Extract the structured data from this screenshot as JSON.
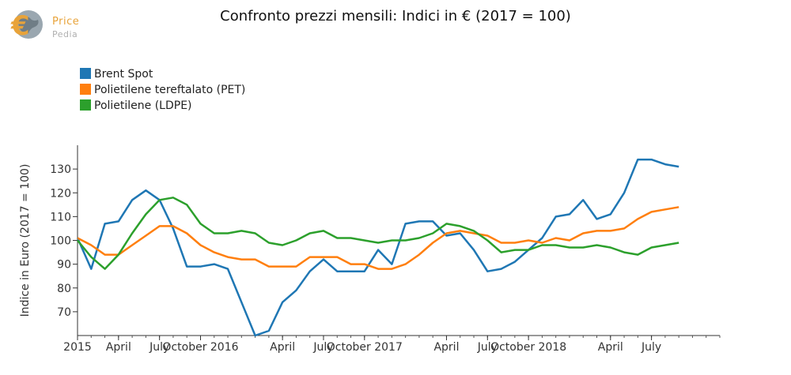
{
  "logo": {
    "line1": "Price",
    "line2": "Pedia"
  },
  "chart_data": {
    "type": "line",
    "title": "Confronto prezzi mensili: Indici in € (2017 = 100)",
    "ylabel": "Indice in Euro (2017 = 100)",
    "xlabel": "",
    "ylim": [
      60,
      140
    ],
    "yticks": [
      70,
      80,
      90,
      100,
      110,
      120,
      130
    ],
    "x_month_range": [
      "2015-01",
      "2018-12"
    ],
    "xtick_labels": [
      {
        "month": "2015-01",
        "label": "2015"
      },
      {
        "month": "2015-04",
        "label": "April"
      },
      {
        "month": "2015-07",
        "label": "July"
      },
      {
        "month": "2015-10",
        "label": "October 2016"
      },
      {
        "month": "2016-04",
        "label": "April"
      },
      {
        "month": "2016-07",
        "label": "July"
      },
      {
        "month": "2016-10",
        "label": "October 2017"
      },
      {
        "month": "2017-04",
        "label": "April"
      },
      {
        "month": "2017-07",
        "label": "July"
      },
      {
        "month": "2017-10",
        "label": "October 2018"
      },
      {
        "month": "2018-04",
        "label": "April"
      },
      {
        "month": "2018-07",
        "label": "July"
      }
    ],
    "legend_position": "top-left",
    "grid": false,
    "series": [
      {
        "name": "Brent Spot",
        "color": "#1f77b4",
        "x": [
          "2015-01",
          "2015-02",
          "2015-03",
          "2015-04",
          "2015-05",
          "2015-06",
          "2015-07",
          "2015-08",
          "2015-09",
          "2015-10",
          "2015-11",
          "2015-12",
          "2016-01",
          "2016-02",
          "2016-03",
          "2016-04",
          "2016-05",
          "2016-06",
          "2016-07",
          "2016-08",
          "2016-09",
          "2016-10",
          "2016-11",
          "2016-12",
          "2017-01",
          "2017-02",
          "2017-03",
          "2017-04",
          "2017-05",
          "2017-06",
          "2017-07",
          "2017-08",
          "2017-09",
          "2017-10",
          "2017-11",
          "2017-12",
          "2018-01",
          "2018-02",
          "2018-03",
          "2018-04",
          "2018-05",
          "2018-06",
          "2018-07",
          "2018-08",
          "2018-09"
        ],
        "values": [
          101,
          88,
          107,
          108,
          117,
          121,
          117,
          105,
          89,
          89,
          90,
          88,
          74,
          60,
          62,
          74,
          79,
          87,
          92,
          87,
          87,
          87,
          96,
          90,
          107,
          108,
          108,
          102,
          103,
          96,
          87,
          88,
          91,
          96,
          101,
          110,
          111,
          117,
          109,
          111,
          120,
          134,
          134,
          132,
          131
        ]
      },
      {
        "name": "Polietilene tereftalato (PET)",
        "color": "#ff7f0e",
        "x": [
          "2015-01",
          "2015-02",
          "2015-03",
          "2015-04",
          "2015-05",
          "2015-06",
          "2015-07",
          "2015-08",
          "2015-09",
          "2015-10",
          "2015-11",
          "2015-12",
          "2016-01",
          "2016-02",
          "2016-03",
          "2016-04",
          "2016-05",
          "2016-06",
          "2016-07",
          "2016-08",
          "2016-09",
          "2016-10",
          "2016-11",
          "2016-12",
          "2017-01",
          "2017-02",
          "2017-03",
          "2017-04",
          "2017-05",
          "2017-06",
          "2017-07",
          "2017-08",
          "2017-09",
          "2017-10",
          "2017-11",
          "2017-12",
          "2018-01",
          "2018-02",
          "2018-03",
          "2018-04",
          "2018-05",
          "2018-06",
          "2018-07",
          "2018-08",
          "2018-09"
        ],
        "values": [
          101,
          98,
          94,
          94,
          98,
          102,
          106,
          106,
          103,
          98,
          95,
          93,
          92,
          92,
          89,
          89,
          89,
          93,
          93,
          93,
          90,
          90,
          88,
          88,
          90,
          94,
          99,
          103,
          104,
          103,
          102,
          99,
          99,
          100,
          99,
          101,
          100,
          103,
          104,
          104,
          105,
          109,
          112,
          113,
          114
        ]
      },
      {
        "name": "Polietilene (LDPE)",
        "color": "#2ca02c",
        "x": [
          "2015-01",
          "2015-02",
          "2015-03",
          "2015-04",
          "2015-05",
          "2015-06",
          "2015-07",
          "2015-08",
          "2015-09",
          "2015-10",
          "2015-11",
          "2015-12",
          "2016-01",
          "2016-02",
          "2016-03",
          "2016-04",
          "2016-05",
          "2016-06",
          "2016-07",
          "2016-08",
          "2016-09",
          "2016-10",
          "2016-11",
          "2016-12",
          "2017-01",
          "2017-02",
          "2017-03",
          "2017-04",
          "2017-05",
          "2017-06",
          "2017-07",
          "2017-08",
          "2017-09",
          "2017-10",
          "2017-11",
          "2017-12",
          "2018-01",
          "2018-02",
          "2018-03",
          "2018-04",
          "2018-05",
          "2018-06",
          "2018-07",
          "2018-08",
          "2018-09"
        ],
        "values": [
          100,
          93,
          88,
          94,
          103,
          111,
          117,
          118,
          115,
          107,
          103,
          103,
          104,
          103,
          99,
          98,
          100,
          103,
          104,
          101,
          101,
          100,
          99,
          100,
          100,
          101,
          103,
          107,
          106,
          104,
          100,
          95,
          96,
          96,
          98,
          98,
          97,
          97,
          98,
          97,
          95,
          94,
          97,
          98,
          99
        ]
      }
    ]
  }
}
